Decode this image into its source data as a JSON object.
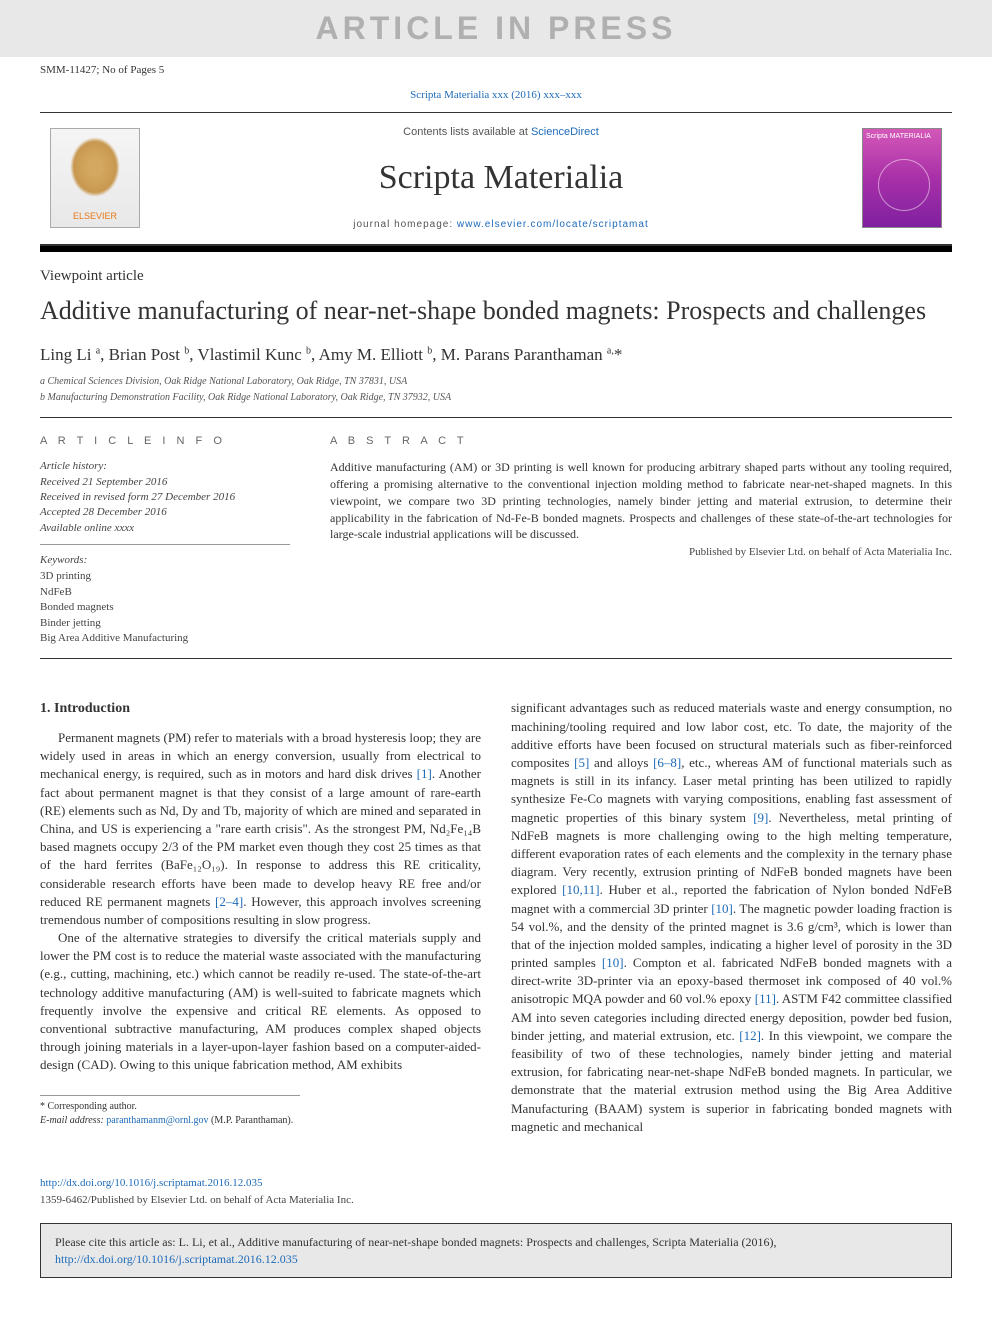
{
  "watermark": "ARTICLE IN PRESS",
  "page_info": "SMM-11427; No of Pages 5",
  "citation_top": "Scripta Materialia xxx (2016) xxx–xxx",
  "header": {
    "elsevier": "ELSEVIER",
    "contents": "Contents lists available at ",
    "contents_link": "ScienceDirect",
    "journal": "Scripta Materialia",
    "homepage_label": "journal homepage: ",
    "homepage_link": "www.elsevier.com/locate/scriptamat",
    "cover_text": "Scripta MATERIALIA"
  },
  "article": {
    "type": "Viewpoint article",
    "title": "Additive manufacturing of near-net-shape bonded magnets: Prospects and challenges",
    "authors_html": "Ling Li <sup>a</sup>, Brian Post <sup>b</sup>, Vlastimil Kunc <sup>b</sup>, Amy M. Elliott <sup>b</sup>, M. Parans Paranthaman <sup>a,</sup><span class='star'>*</span>",
    "affil_a": "a Chemical Sciences Division, Oak Ridge National Laboratory, Oak Ridge, TN 37831, USA",
    "affil_b": "b Manufacturing Demonstration Facility, Oak Ridge National Laboratory, Oak Ridge, TN 37932, USA"
  },
  "info": {
    "heading": "A R T I C L E   I N F O",
    "history_label": "Article history:",
    "received": "Received 21 September 2016",
    "revised": "Received in revised form 27 December 2016",
    "accepted": "Accepted 28 December 2016",
    "online": "Available online xxxx",
    "keywords_label": "Keywords:",
    "keywords": [
      "3D printing",
      "NdFeB",
      "Bonded magnets",
      "Binder jetting",
      "Big Area Additive Manufacturing"
    ]
  },
  "abstract": {
    "heading": "A B S T R A C T",
    "text": "Additive manufacturing (AM) or 3D printing is well known for producing arbitrary shaped parts without any tooling required, offering a promising alternative to the conventional injection molding method to fabricate near-net-shaped magnets. In this viewpoint, we compare two 3D printing technologies, namely binder jetting and material extrusion, to determine their applicability in the fabrication of Nd-Fe-B bonded magnets. Prospects and challenges of these state-of-the-art technologies for large-scale industrial applications will be discussed.",
    "pub_by": "Published by Elsevier Ltd. on behalf of Acta Materialia Inc."
  },
  "body": {
    "h1": "1. Introduction",
    "p1a": "Permanent magnets (PM) refer to materials with a broad hysteresis loop; they are widely used in areas in which an energy conversion, usually from electrical to mechanical energy, is required, such as in motors and hard disk drives ",
    "r1": "[1]",
    "p1b": ". Another fact about permanent magnet is that they consist of a large amount of rare-earth (RE) elements such as Nd, Dy and Tb, majority of which are mined and separated in China, and US is experiencing a \"rare earth crisis\". As the strongest PM, Nd₂Fe₁₄B based magnets occupy 2/3 of the PM market even though they cost 25 times as that of the hard ferrites (BaFe₁₂O₁₉). In response to address this RE criticality, considerable research efforts have been made to develop heavy RE free and/or reduced RE permanent magnets ",
    "r2_4": "[2–4]",
    "p1c": ". However, this approach involves screening tremendous number of compositions resulting in slow progress.",
    "p2a": "One of the alternative strategies to diversify the critical materials supply and lower the PM cost is to reduce the material waste associated with the manufacturing (e.g., cutting, machining, etc.) which cannot be readily re-used. The state-of-the-art technology additive manufacturing (AM) is well-suited to fabricate magnets which frequently involve the expensive and critical RE elements. As opposed to conventional subtractive manufacturing, AM produces complex shaped objects through joining materials in a layer-upon-layer fashion based on a computer-aided-design (CAD). Owing to this unique fabrication method, AM exhibits",
    "p3a": "significant advantages such as reduced materials waste and energy consumption, no machining/tooling required and low labor cost, etc. To date, the majority of the additive efforts have been focused on structural materials such as fiber-reinforced composites ",
    "r5": "[5]",
    "p3b": " and alloys ",
    "r6_8": "[6–8]",
    "p3c": ", etc., whereas AM of functional materials such as magnets is still in its infancy. Laser metal printing has been utilized to rapidly synthesize Fe-Co magnets with varying compositions, enabling fast assessment of magnetic properties of this binary system ",
    "r9": "[9]",
    "p3d": ". Nevertheless, metal printing of NdFeB magnets is more challenging owing to the high melting temperature, different evaporation rates of each elements and the complexity in the ternary phase diagram. Very recently, extrusion printing of NdFeB bonded magnets have been explored ",
    "r10_11": "[10,11]",
    "p3e": ". Huber et al., reported the fabrication of Nylon bonded NdFeB magnet with a commercial 3D printer ",
    "r10": "[10]",
    "p3f": ". The magnetic powder loading fraction is 54 vol.%, and the density of the printed magnet is 3.6 g/cm³, which is lower than that of the injection molded samples, indicating a higher level of porosity in the 3D printed samples ",
    "r10b": "[10]",
    "p3g": ". Compton et al. fabricated NdFeB bonded magnets with a direct-write 3D-printer via an epoxy-based thermoset ink composed of 40 vol.% anisotropic MQA powder and 60 vol.% epoxy ",
    "r11": "[11]",
    "p3h": ". ASTM F42 committee classified AM into seven categories including directed energy deposition, powder bed fusion, binder jetting, and material extrusion, etc. ",
    "r12": "[12]",
    "p3i": ". In this viewpoint, we compare the feasibility of two of these technologies, namely binder jetting and material extrusion, for fabricating near-net-shape NdFeB bonded magnets. In particular, we demonstrate that the material extrusion method using the Big Area Additive Manufacturing (BAAM) system is superior in fabricating bonded magnets with magnetic and mechanical"
  },
  "corr": {
    "label": "* Corresponding author.",
    "email_label": "E-mail address: ",
    "email": "paranthamanm@ornl.gov",
    "email_tail": " (M.P. Paranthaman)."
  },
  "doi": {
    "link": "http://dx.doi.org/10.1016/j.scriptamat.2016.12.035",
    "copyright": "1359-6462/Published by Elsevier Ltd. on behalf of Acta Materialia Inc."
  },
  "cite_box": {
    "text_a": "Please cite this article as: L. Li, et al., Additive manufacturing of near-net-shape bonded magnets: Prospects and challenges, Scripta Materialia (2016), ",
    "link": "http://dx.doi.org/10.1016/j.scriptamat.2016.12.035"
  },
  "colors": {
    "link": "#1e6bb8",
    "watermark_bg": "#e8e8e8",
    "watermark_fg": "#b0b0b0",
    "elsevier_orange": "#e67817",
    "cover_magenta": "#d458b8"
  }
}
